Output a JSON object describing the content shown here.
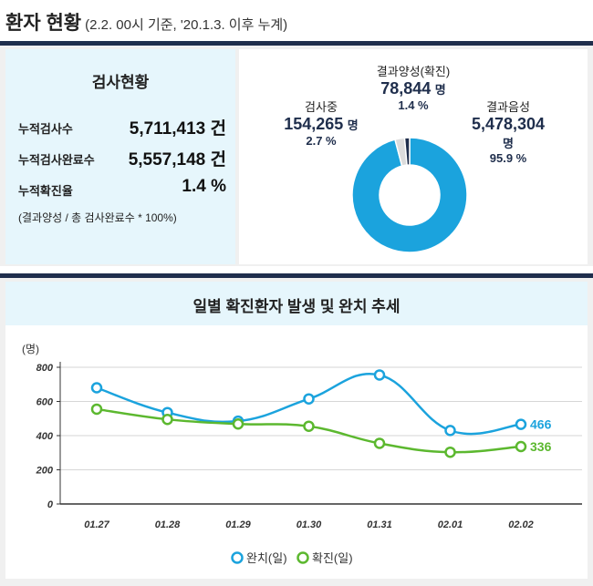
{
  "header": {
    "title": "환자 현황",
    "subtitle": "(2.2. 00시 기준, '20.1.3. 이후 누계)"
  },
  "test_status": {
    "title": "검사현황",
    "rows": [
      {
        "label": "누적검사수",
        "value": "5,711,413 건"
      },
      {
        "label": "누적검사완료수",
        "value": "5,557,148 건"
      },
      {
        "label": "누적확진율",
        "value": "1.4 %"
      }
    ],
    "note": "(결과양성 / 총 검사완료수 * 100%)"
  },
  "donut": {
    "positive": {
      "name": "결과양성(확진)",
      "value": "78,844",
      "unit": "명",
      "pct": "1.4 %"
    },
    "testing": {
      "name": "검사중",
      "value": "154,265",
      "unit": "명",
      "pct": "2.7 %"
    },
    "negative": {
      "name": "결과음성",
      "value": "5,478,304",
      "unit": "명",
      "pct": "95.9 %"
    }
  },
  "colors": {
    "navy": "#1f2e4c",
    "blue": "#1ba3dd",
    "green": "#5cb82f",
    "gray_slice": "#dcdcdc",
    "light_blue_bg": "#e6f6fc"
  },
  "chart_data": [
    {
      "type": "pie",
      "categories": [
        "결과음성",
        "검사중",
        "결과양성(확진)"
      ],
      "values": [
        95.9,
        2.7,
        1.4
      ],
      "colors": [
        "#1ba3dd",
        "#dcdcdc",
        "#1f2e4c"
      ]
    },
    {
      "type": "line",
      "title": "일별 확진환자 발생 및 완치 추세",
      "ylabel": "(명)",
      "x": [
        "01.27",
        "01.28",
        "01.29",
        "01.30",
        "01.31",
        "02.01",
        "02.02"
      ],
      "ylim": [
        0,
        800
      ],
      "yticks": [
        0,
        200,
        400,
        600,
        800
      ],
      "grid": true,
      "legend": "bottom",
      "series": [
        {
          "name": "완치(일)",
          "color": "#1ba3dd",
          "values": [
            680,
            535,
            485,
            615,
            755,
            430,
            466
          ],
          "end_label": "466"
        },
        {
          "name": "확진(일)",
          "color": "#5cb82f",
          "values": [
            555,
            495,
            468,
            455,
            355,
            303,
            336
          ],
          "end_label": "336"
        }
      ]
    }
  ]
}
